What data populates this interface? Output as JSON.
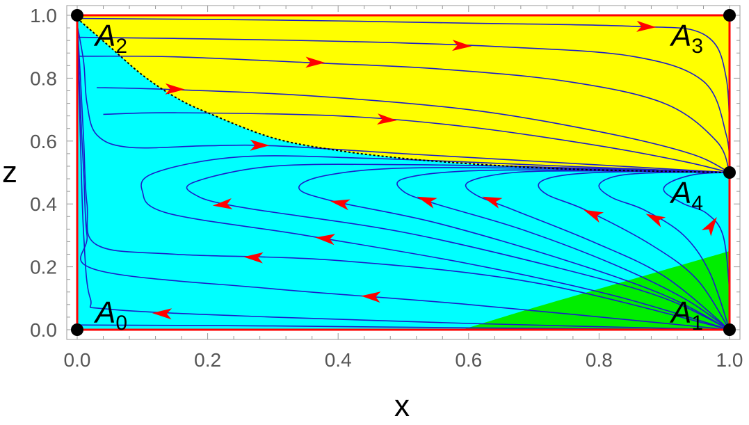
{
  "chart_data": {
    "type": "phase-portrait",
    "xlabel": "x",
    "ylabel": "z",
    "xlim": [
      0,
      1
    ],
    "ylim": [
      0,
      1
    ],
    "x_ticks": [
      "0.0",
      "0.2",
      "0.4",
      "0.6",
      "0.8",
      "1.0"
    ],
    "y_ticks": [
      "0.0",
      "0.2",
      "0.4",
      "0.6",
      "0.8",
      "1.0"
    ],
    "colors": {
      "upper_region": "#ffff00",
      "middle_region": "#00ffff",
      "lower_region": "#00ee00",
      "trajectory": "#1c1cc8",
      "arrow": "#ff0000",
      "boundary": "#ff0000",
      "separatrix": "#000000",
      "critical_point": "#000000"
    },
    "critical_points": [
      {
        "name": "A",
        "sub": "0",
        "x": 0,
        "z": 0,
        "label_at": "top-right"
      },
      {
        "name": "A",
        "sub": "1",
        "x": 1,
        "z": 0,
        "label_at": "top-left"
      },
      {
        "name": "A",
        "sub": "2",
        "x": 0,
        "z": 1,
        "label_at": "bottom-right"
      },
      {
        "name": "A",
        "sub": "3",
        "x": 1,
        "z": 1,
        "label_at": "bottom-left"
      },
      {
        "name": "A",
        "sub": "4",
        "x": 1,
        "z": 0.5,
        "label_at": "bottom-left"
      }
    ],
    "regions": {
      "green_boundary": [
        [
          0.59,
          0.0
        ],
        [
          0.7,
          0.07
        ],
        [
          0.8,
          0.13
        ],
        [
          0.9,
          0.19
        ],
        [
          1.0,
          0.25
        ]
      ]
    },
    "separatrix": [
      [
        0.0,
        0.99
      ],
      [
        0.05,
        0.9
      ],
      [
        0.1,
        0.81
      ],
      [
        0.15,
        0.74
      ],
      [
        0.2,
        0.69
      ],
      [
        0.3,
        0.61
      ],
      [
        0.4,
        0.57
      ],
      [
        0.5,
        0.545
      ],
      [
        0.6,
        0.528
      ],
      [
        0.7,
        0.516
      ],
      [
        0.8,
        0.508
      ],
      [
        1.0,
        0.5
      ]
    ],
    "trajectories": [
      {
        "points": [
          [
            0.0,
            0.99
          ],
          [
            0.3,
            0.985
          ],
          [
            0.6,
            0.975
          ],
          [
            0.85,
            0.965
          ],
          [
            0.96,
            0.94
          ],
          [
            0.995,
            0.8
          ],
          [
            1.0,
            0.5
          ]
        ],
        "arrow": [
          0.855,
          0.965,
          0.89,
          0.962
        ]
      },
      {
        "points": [
          [
            0.0,
            0.93
          ],
          [
            0.2,
            0.925
          ],
          [
            0.45,
            0.915
          ],
          [
            0.65,
            0.9
          ],
          [
            0.85,
            0.87
          ],
          [
            0.96,
            0.79
          ],
          [
            0.995,
            0.62
          ],
          [
            1.0,
            0.5
          ]
        ],
        "arrow": [
          0.57,
          0.905,
          0.61,
          0.901
        ]
      },
      {
        "points": [
          [
            0.0,
            0.87
          ],
          [
            0.15,
            0.868
          ],
          [
            0.35,
            0.85
          ],
          [
            0.55,
            0.83
          ],
          [
            0.75,
            0.79
          ],
          [
            0.9,
            0.72
          ],
          [
            0.98,
            0.6
          ],
          [
            1.0,
            0.5
          ]
        ],
        "arrow": [
          0.345,
          0.851,
          0.385,
          0.849
        ]
      },
      {
        "points": [
          [
            0.03,
            0.77
          ],
          [
            0.13,
            0.765
          ],
          [
            0.35,
            0.745
          ],
          [
            0.6,
            0.7
          ],
          [
            0.8,
            0.63
          ],
          [
            0.94,
            0.56
          ],
          [
            1.0,
            0.5
          ]
        ],
        "arrow": [
          0.13,
          0.766,
          0.17,
          0.764
        ]
      },
      {
        "points": [
          [
            0.04,
            0.685
          ],
          [
            0.15,
            0.69
          ],
          [
            0.4,
            0.68
          ],
          [
            0.6,
            0.645
          ],
          [
            0.8,
            0.585
          ],
          [
            0.93,
            0.535
          ],
          [
            1.0,
            0.5
          ]
        ],
        "arrow": [
          0.455,
          0.671,
          0.495,
          0.665
        ]
      },
      {
        "points": [
          [
            0.0,
            0.97
          ],
          [
            0.01,
            0.85
          ],
          [
            0.015,
            0.72
          ],
          [
            0.03,
            0.62
          ],
          [
            0.08,
            0.58
          ],
          [
            0.2,
            0.585
          ],
          [
            0.3,
            0.585
          ],
          [
            0.5,
            0.56
          ],
          [
            0.75,
            0.53
          ],
          [
            1.0,
            0.5
          ]
        ],
        "arrow": [
          0.26,
          0.587,
          0.3,
          0.586
        ]
      },
      {
        "points": [
          [
            1.0,
            0.5
          ],
          [
            0.75,
            0.52
          ],
          [
            0.45,
            0.545
          ],
          [
            0.25,
            0.55
          ],
          [
            0.12,
            0.5
          ],
          [
            0.1,
            0.44
          ],
          [
            0.14,
            0.37
          ],
          [
            0.35,
            0.3
          ],
          [
            0.6,
            0.21
          ],
          [
            0.82,
            0.11
          ],
          [
            1.0,
            0.0
          ]
        ],
        "arrow": [
          0.4,
          0.286,
          0.36,
          0.294
        ]
      },
      {
        "points": [
          [
            1.0,
            0.5
          ],
          [
            0.7,
            0.518
          ],
          [
            0.5,
            0.525
          ],
          [
            0.3,
            0.52
          ],
          [
            0.18,
            0.47
          ],
          [
            0.18,
            0.43
          ],
          [
            0.25,
            0.39
          ],
          [
            0.5,
            0.31
          ],
          [
            0.75,
            0.19
          ],
          [
            0.9,
            0.1
          ],
          [
            1.0,
            0.0
          ]
        ],
        "arrow": [
          0.235,
          0.4,
          0.21,
          0.395
        ]
      },
      {
        "points": [
          [
            1.0,
            0.5
          ],
          [
            0.75,
            0.512
          ],
          [
            0.5,
            0.514
          ],
          [
            0.38,
            0.49
          ],
          [
            0.34,
            0.45
          ],
          [
            0.39,
            0.41
          ],
          [
            0.55,
            0.34
          ],
          [
            0.75,
            0.22
          ],
          [
            0.9,
            0.11
          ],
          [
            1.0,
            0.0
          ]
        ],
        "arrow": [
          0.415,
          0.398,
          0.39,
          0.408
        ]
      },
      {
        "points": [
          [
            1.0,
            0.5
          ],
          [
            0.8,
            0.508
          ],
          [
            0.6,
            0.505
          ],
          [
            0.5,
            0.48
          ],
          [
            0.5,
            0.44
          ],
          [
            0.55,
            0.4
          ],
          [
            0.68,
            0.32
          ],
          [
            0.82,
            0.21
          ],
          [
            0.93,
            0.1
          ],
          [
            1.0,
            0.0
          ]
        ],
        "arrow": [
          0.545,
          0.405,
          0.525,
          0.42
        ]
      },
      {
        "points": [
          [
            1.0,
            0.5
          ],
          [
            0.8,
            0.505
          ],
          [
            0.67,
            0.5
          ],
          [
            0.6,
            0.47
          ],
          [
            0.61,
            0.43
          ],
          [
            0.67,
            0.38
          ],
          [
            0.79,
            0.28
          ],
          [
            0.9,
            0.17
          ],
          [
            1.0,
            0.0
          ]
        ],
        "arrow": [
          0.645,
          0.405,
          0.625,
          0.42
        ]
      },
      {
        "points": [
          [
            1.0,
            0.5
          ],
          [
            0.86,
            0.503
          ],
          [
            0.76,
            0.495
          ],
          [
            0.71,
            0.47
          ],
          [
            0.72,
            0.43
          ],
          [
            0.78,
            0.38
          ],
          [
            0.88,
            0.27
          ],
          [
            0.95,
            0.16
          ],
          [
            1.0,
            0.0
          ]
        ],
        "arrow": [
          0.8,
          0.36,
          0.78,
          0.378
        ]
      },
      {
        "points": [
          [
            1.0,
            0.5
          ],
          [
            0.9,
            0.5
          ],
          [
            0.83,
            0.49
          ],
          [
            0.8,
            0.46
          ],
          [
            0.82,
            0.42
          ],
          [
            0.87,
            0.38
          ],
          [
            0.93,
            0.3
          ],
          [
            0.97,
            0.18
          ],
          [
            1.0,
            0.0
          ]
        ],
        "arrow": [
          0.895,
          0.345,
          0.875,
          0.365
        ]
      },
      {
        "points": [
          [
            1.0,
            0.5
          ],
          [
            0.95,
            0.495
          ],
          [
            0.91,
            0.47
          ],
          [
            0.9,
            0.44
          ],
          [
            0.93,
            0.4
          ],
          [
            0.965,
            0.37
          ],
          [
            0.99,
            0.3
          ],
          [
            1.0,
            0.12
          ],
          [
            1.0,
            0.0
          ]
        ],
        "arrow": [
          0.967,
          0.315,
          0.978,
          0.35
        ]
      },
      {
        "points": [
          [
            0.0,
            0.98
          ],
          [
            0.005,
            0.8
          ],
          [
            0.01,
            0.6
          ],
          [
            0.015,
            0.4
          ],
          [
            0.03,
            0.27
          ],
          [
            0.15,
            0.24
          ],
          [
            0.4,
            0.22
          ],
          [
            0.7,
            0.15
          ],
          [
            1.0,
            0.0
          ]
        ],
        "arrow": [
          0.29,
          0.228,
          0.25,
          0.232
        ]
      },
      {
        "points": [
          [
            0.0,
            0.98
          ],
          [
            0.005,
            0.7
          ],
          [
            0.01,
            0.5
          ],
          [
            0.015,
            0.3
          ],
          [
            0.03,
            0.19
          ],
          [
            0.3,
            0.13
          ],
          [
            0.6,
            0.08
          ],
          [
            1.0,
            0.0
          ]
        ],
        "arrow": [
          0.47,
          0.103,
          0.43,
          0.108
        ]
      },
      {
        "points": [
          [
            0.0,
            0.98
          ],
          [
            0.005,
            0.6
          ],
          [
            0.01,
            0.3
          ],
          [
            0.02,
            0.1
          ],
          [
            0.05,
            0.065
          ],
          [
            0.3,
            0.04
          ],
          [
            0.6,
            0.02
          ],
          [
            1.0,
            0.0
          ]
        ],
        "arrow": [
          0.15,
          0.05,
          0.11,
          0.053
        ]
      },
      {
        "points": [
          [
            0.0,
            0.015
          ],
          [
            0.3,
            0.012
          ],
          [
            0.6,
            0.006
          ],
          [
            1.0,
            0.0
          ]
        ],
        "arrow": null
      }
    ]
  }
}
